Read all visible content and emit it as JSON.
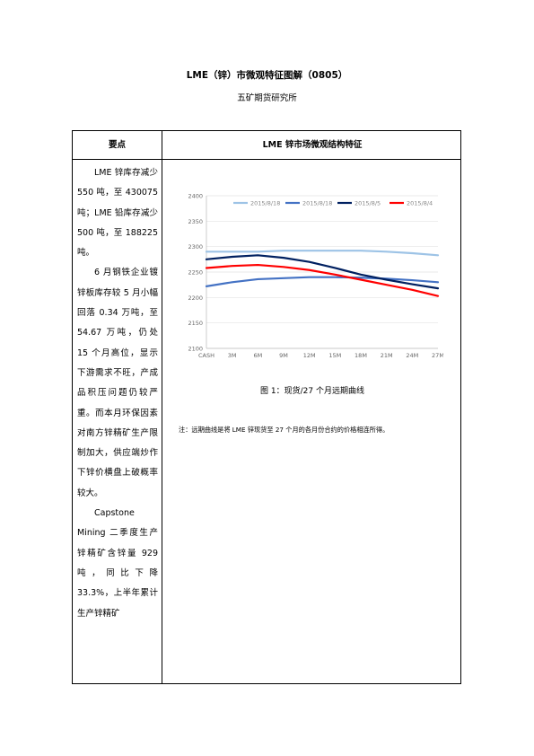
{
  "header": {
    "title": "LME（锌）市微观特征图解（0805）",
    "subtitle": "五矿期货研究所"
  },
  "table": {
    "col_left_header": "要点",
    "col_right_header": "LME 锌市场微观结构特征"
  },
  "points": [
    "LME 锌库存减少 550 吨，至 430075 吨；LME 铅库存减少 500 吨，至 188225 吨。",
    "6 月钢铁企业镀锌板库存较 5 月小幅回落 0.34 万吨，至 54.67 万吨，仍处 15 个月高位，显示下游需求不旺，产成品积压问题仍较严重。而本月环保因素对南方锌精矿生产限制加大，供应端炒作下锌价横盘上破概率较大。",
    "Capstone Mining 二季度生产锌精矿含锌量 929 吨，同比下降 33.3%，上半年累计生产锌精矿"
  ],
  "figure": {
    "caption": "图 1：现货/27 个月远期曲线",
    "note": "注：远期曲线是将 LME 锌现货至 27 个月的各月份合约的价格相连所得。"
  },
  "chart_data": {
    "type": "line",
    "categories": [
      "CASH",
      "3M",
      "6M",
      "9M",
      "12M",
      "15M",
      "18M",
      "21M",
      "24M",
      "27M"
    ],
    "x_positions": [
      0,
      3,
      6,
      9,
      12,
      15,
      18,
      21,
      24,
      27
    ],
    "ylim": [
      2100,
      2400
    ],
    "yticks": [
      2100,
      2150,
      2200,
      2250,
      2300,
      2350,
      2400
    ],
    "grid": true,
    "legend_position": "top",
    "series": [
      {
        "name": "2015/8/18",
        "color": "#9dc3e6",
        "values": [
          2290,
          2290,
          2290,
          2292,
          2292,
          2292,
          2292,
          2290,
          2287,
          2283
        ]
      },
      {
        "name": "2015/8/18",
        "color": "#4472c4",
        "values": [
          2222,
          2230,
          2236,
          2238,
          2240,
          2240,
          2239,
          2237,
          2234,
          2230
        ]
      },
      {
        "name": "2015/8/5",
        "color": "#002060",
        "values": [
          2275,
          2280,
          2283,
          2278,
          2270,
          2258,
          2245,
          2235,
          2226,
          2218
        ]
      },
      {
        "name": "2015/8/4",
        "color": "#ff0000",
        "values": [
          2258,
          2262,
          2264,
          2260,
          2254,
          2245,
          2235,
          2225,
          2215,
          2203
        ]
      }
    ]
  }
}
